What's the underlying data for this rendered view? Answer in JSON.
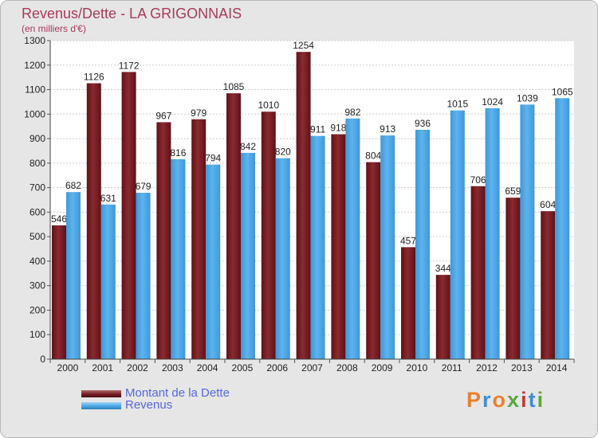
{
  "title": "Revenus/Dette - LA GRIGONNAIS",
  "subtitle": "(en milliers d'€)",
  "logo_text": "Proxiti",
  "colors": {
    "dette": "#7a1e24",
    "revenus": "#4aa6e6",
    "title": "#a83a5a",
    "legend_text": "#5566dd"
  },
  "chart_data": {
    "type": "bar",
    "categories": [
      "2000",
      "2001",
      "2002",
      "2003",
      "2004",
      "2005",
      "2006",
      "2007",
      "2008",
      "2009",
      "2010",
      "2011",
      "2012",
      "2013",
      "2014"
    ],
    "series": [
      {
        "name": "Montant de la Dette",
        "values": [
          546,
          1126,
          1172,
          967,
          979,
          1085,
          1010,
          1254,
          918,
          804,
          457,
          344,
          706,
          659,
          604
        ]
      },
      {
        "name": "Revenus",
        "values": [
          682,
          631,
          679,
          816,
          794,
          842,
          820,
          911,
          982,
          913,
          936,
          1015,
          1024,
          1039,
          1065
        ]
      }
    ],
    "ylim": [
      0,
      1300
    ],
    "yticks": [
      0,
      100,
      200,
      300,
      400,
      500,
      600,
      700,
      800,
      900,
      1000,
      1100,
      1200,
      1300
    ],
    "grid": true,
    "legend_position": "bottom-left"
  }
}
